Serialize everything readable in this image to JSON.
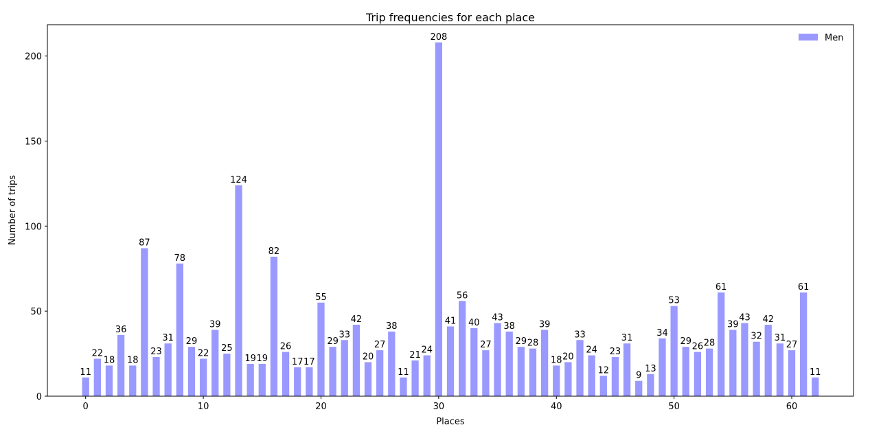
{
  "chart_data": {
    "type": "bar",
    "title": "Trip frequencies for each place",
    "xlabel": "Places",
    "ylabel": "Number of trips",
    "x": [
      0,
      1,
      2,
      3,
      4,
      5,
      6,
      7,
      8,
      9,
      10,
      11,
      12,
      13,
      14,
      15,
      16,
      17,
      18,
      19,
      20,
      21,
      22,
      23,
      24,
      25,
      26,
      27,
      28,
      29,
      30,
      31,
      32,
      33,
      34,
      35,
      36,
      37,
      38,
      39,
      40,
      41,
      42,
      43,
      44,
      45,
      46,
      47,
      48,
      49,
      50,
      51,
      52,
      53,
      54,
      55,
      56,
      57,
      58,
      59,
      60,
      61,
      62
    ],
    "series": [
      {
        "name": "Men",
        "color": "#9999ff",
        "values": [
          11,
          22,
          18,
          36,
          18,
          87,
          23,
          31,
          78,
          29,
          22,
          39,
          25,
          124,
          19,
          19,
          82,
          26,
          17,
          17,
          55,
          29,
          33,
          42,
          20,
          27,
          38,
          11,
          21,
          24,
          208,
          41,
          56,
          40,
          27,
          43,
          38,
          29,
          28,
          39,
          18,
          20,
          33,
          24,
          12,
          23,
          31,
          9,
          13,
          34,
          53,
          29,
          26,
          28,
          61,
          39,
          43,
          32,
          42,
          31,
          27,
          61,
          11
        ]
      }
    ],
    "xlim": [
      -3.25,
      65.25
    ],
    "ylim": [
      0,
      218.4
    ],
    "xticks": [
      0,
      10,
      20,
      30,
      40,
      50,
      60
    ],
    "yticks": [
      0,
      50,
      100,
      150,
      200
    ],
    "grid": false,
    "legend_position": "top-right"
  }
}
